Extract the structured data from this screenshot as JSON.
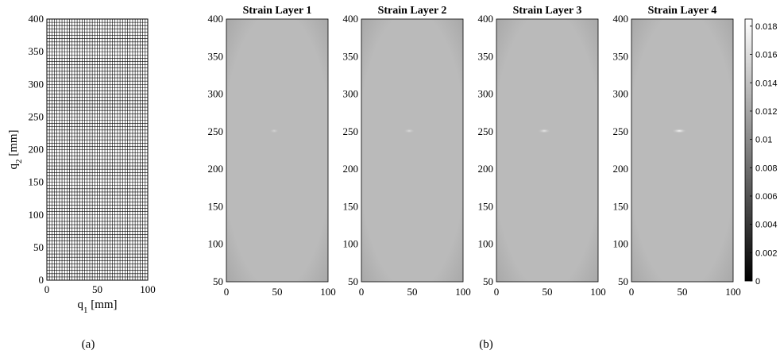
{
  "chart_data": [
    {
      "panel": "a",
      "type": "mesh",
      "caption": "(a)",
      "title": "",
      "xlabel": {
        "main": "q",
        "sub": "1",
        "unit": " [mm]"
      },
      "ylabel": {
        "main": "q",
        "sub": "2",
        "unit": " [mm]"
      },
      "xlim": [
        0,
        100
      ],
      "ylim": [
        0,
        400
      ],
      "xticks": [
        0,
        50,
        100
      ],
      "yticks": [
        0,
        50,
        100,
        150,
        200,
        250,
        300,
        350,
        400
      ],
      "grid_divisions": {
        "x": 40,
        "y": 80
      }
    },
    {
      "panel": "b",
      "type": "heatmap",
      "caption": "(b)",
      "xlim": [
        0,
        100
      ],
      "ylim": [
        50,
        400
      ],
      "xticks": [
        0,
        50,
        100
      ],
      "yticks": [
        50,
        100,
        150,
        200,
        250,
        300,
        350,
        400
      ],
      "color_scale": "grayscale",
      "background_strain": 0.0135,
      "hotspot": {
        "x": 47,
        "y": 251
      },
      "layers": [
        {
          "title": "Strain Layer 1",
          "peak_strain": 0.0155
        },
        {
          "title": "Strain Layer 2",
          "peak_strain": 0.016
        },
        {
          "title": "Strain Layer 3",
          "peak_strain": 0.017
        },
        {
          "title": "Strain Layer 4",
          "peak_strain": 0.0182
        }
      ],
      "colorbar": {
        "min": 0,
        "max": 0.0185,
        "ticks": [
          0,
          0.002,
          0.004,
          0.006,
          0.008,
          0.01,
          0.012,
          0.014,
          0.016,
          0.018
        ],
        "tick_labels": [
          "0",
          "0.002",
          "0.004",
          "0.006",
          "0.008",
          "0.01",
          "0.012",
          "0.014",
          "0.016",
          "0.018"
        ]
      }
    }
  ]
}
